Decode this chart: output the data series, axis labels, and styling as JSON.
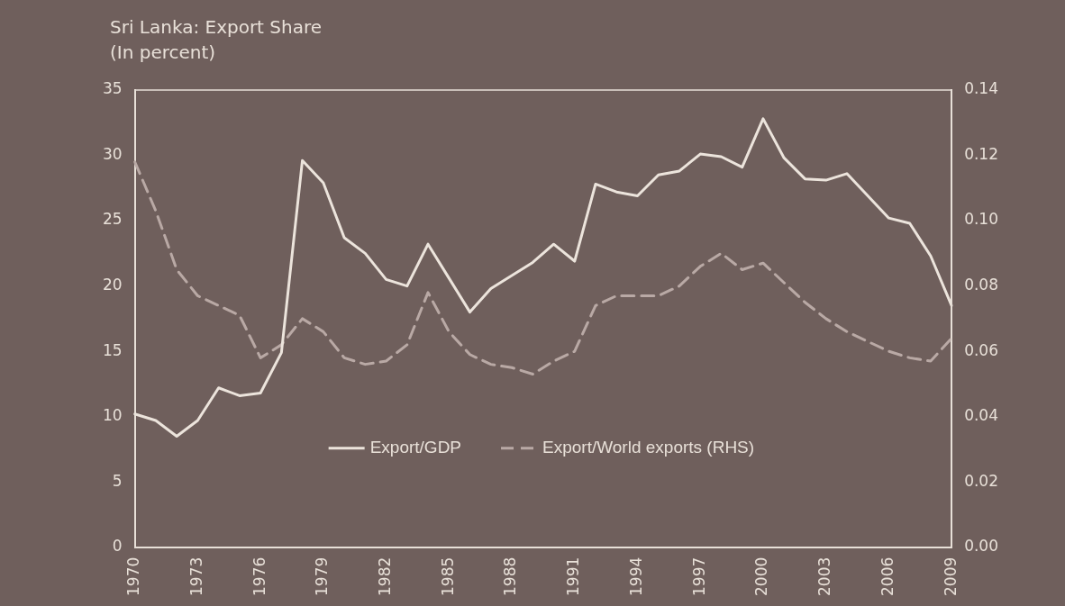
{
  "chart_data": {
    "type": "line",
    "title": "Sri Lanka: Export Share",
    "subtitle": "(In percent)",
    "categories": [
      "1970",
      null,
      null,
      "1973",
      null,
      null,
      "1976",
      null,
      null,
      "1979",
      null,
      null,
      "1982",
      null,
      null,
      "1985",
      null,
      null,
      "1988",
      null,
      null,
      "1991",
      null,
      null,
      "1994",
      null,
      null,
      "1997",
      null,
      null,
      "2000",
      null,
      null,
      "2003",
      null,
      null,
      "2006",
      null,
      null,
      "2009"
    ],
    "series": [
      {
        "name": "Export/GDP",
        "color": "#ece4dc",
        "line_style": "solid",
        "values": [
          10.2,
          9.7,
          8.5,
          9.7,
          12.2,
          11.6,
          11.8,
          14.9,
          29.6,
          27.9,
          23.7,
          22.5,
          20.5,
          20.0,
          23.2,
          20.6,
          18.0,
          19.8,
          20.8,
          21.8,
          23.2,
          21.9,
          27.8,
          27.2,
          26.9,
          28.5,
          28.8,
          30.1,
          29.9,
          29.1,
          32.8,
          29.8,
          28.2,
          28.1,
          28.6,
          26.9,
          25.2,
          24.8,
          22.3,
          18.5
        ]
      },
      {
        "name": "Export/World exports (RHS)",
        "color": "#b9a9a5",
        "line_style": "dashed",
        "axis": "y2",
        "values": [
          0.118,
          0.103,
          0.085,
          0.077,
          0.074,
          0.071,
          0.058,
          0.062,
          0.07,
          0.066,
          0.058,
          0.056,
          0.057,
          0.062,
          0.078,
          0.066,
          0.059,
          0.056,
          0.055,
          0.053,
          0.057,
          0.06,
          0.074,
          0.077,
          0.077,
          0.077,
          0.08,
          0.086,
          0.09,
          0.085,
          0.087,
          0.081,
          0.075,
          0.07,
          0.066,
          0.063,
          0.06,
          0.058,
          0.057,
          0.064
        ]
      }
    ],
    "ylim": [
      0,
      35
    ],
    "yticks": [
      0,
      5,
      10,
      15,
      20,
      25,
      30,
      35
    ],
    "y2lim": [
      0,
      0.14
    ],
    "y2ticks": [
      {
        "value": 0,
        "label": "0.00"
      },
      {
        "value": 0.02,
        "label": "0.02"
      },
      {
        "value": 0.04,
        "label": "0.04"
      },
      {
        "value": 0.06,
        "label": "0.06"
      },
      {
        "value": 0.08,
        "label": "0.08"
      },
      {
        "value": 0.1,
        "label": "0.10"
      },
      {
        "value": 0.12,
        "label": "0.12"
      },
      {
        "value": 0.14,
        "label": "0.14"
      }
    ],
    "grid": false,
    "legend": "bottom",
    "marker": "none"
  }
}
